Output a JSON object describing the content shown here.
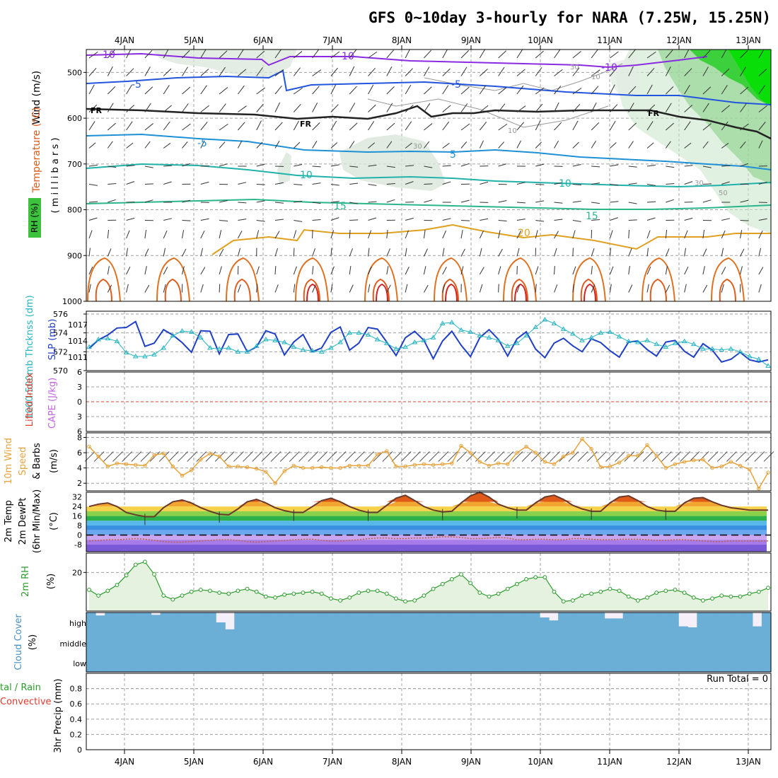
{
  "title": "GFS 0~10day 3-hourly for NARA (7.25W, 15.25N)",
  "x_labels": [
    "4JAN",
    "5JAN",
    "6JAN",
    "7JAN",
    "8JAN",
    "9JAN",
    "10JAN",
    "11JAN",
    "12JAN",
    "13JAN"
  ],
  "run_total": "Run Total = 0",
  "panel_labels": {
    "upper_wind": "Wind (m/s)",
    "upper_temp": "Temperature (°C)",
    "upper_rh": "RH (%)",
    "upper_units": "( m i l l i b a r s )",
    "thickness": "1000-500mb Thcknss (dm)",
    "slp": "SLP (mb)",
    "lifted": "Lifted Index",
    "cape": "CAPE (J/kg)",
    "wind10_a": "10m Wind",
    "wind10_b": "Speed",
    "wind10_c": "& Barbs",
    "wind10_units": "(m/s)",
    "temp_a": "2m Temp",
    "temp_b": "2m DewPt",
    "temp_c": "(6hr Min/Max)",
    "temp_units": "(°C)",
    "rh_a": "2m RH",
    "rh_units": "(%)",
    "cloud_a": "Cloud Cover",
    "cloud_units": "(%)",
    "cloud_levels": [
      "high",
      "middle",
      "low"
    ],
    "precip_a": "tal / Rain",
    "precip_b": "Convective",
    "precip_c": "3hr Precip (mm)"
  },
  "colors": {
    "frame": "#000000",
    "grid": "#a0a0a0",
    "cloud": "#6baed6",
    "slp": "#1f3fc8",
    "thickness": "#27b5c2",
    "wind10": "#e8a33d",
    "rh2m": "#2a9d2a"
  },
  "chart_data": [
    {
      "type": "contour",
      "panel": "upper-air",
      "yaxis": "pressure (mb)",
      "ylim": [
        1000,
        450
      ],
      "yticks": [
        500,
        600,
        700,
        800,
        900,
        1000
      ],
      "temperature_labels": [
        "-10",
        "-10",
        "-10",
        "-5",
        "-5",
        "FR",
        "FR",
        "FR",
        "-5",
        "5",
        "-5",
        "10",
        "10",
        "15",
        "15",
        "20"
      ],
      "rh_labels": [
        "30",
        "10",
        "10",
        "30",
        "30",
        "50"
      ]
    },
    {
      "type": "line",
      "panel": "thickness-slp",
      "ylim_thickness": [
        570,
        576
      ],
      "yticks_thickness": [
        570,
        572,
        574,
        576
      ],
      "yticks_slp": [
        1011,
        1014,
        1017
      ],
      "series": [
        {
          "name": "SLP (mb)",
          "values": [
            1012.6,
            1014.2,
            1015.1,
            1016.4,
            1016.5,
            1017.6,
            1013.0,
            1013.6,
            1016.1,
            1015.1,
            1013.7,
            1011.9,
            1015.9,
            1015.8,
            1011.6,
            1015.2,
            1015.3,
            1012.0,
            1012.9,
            1015.9,
            1015.3,
            1011.4,
            1013.8,
            1015.2,
            1012.0,
            1012.7,
            1015.6,
            1016.6,
            1012.3,
            1013.6,
            1016.5,
            1016.2,
            1013.8,
            1011.3,
            1014.6,
            1015.8,
            1014.1,
            1010.7,
            1014.0,
            1015.8,
            1013.2,
            1011.1,
            1014.6,
            1016.1,
            1014.3,
            1011.2,
            1014.4,
            1015.7,
            1012.5,
            1010.9,
            1013.6,
            1014.5,
            1013.1,
            1012.0,
            1014.4,
            1013.7,
            1012.2,
            1011.0,
            1013.8,
            1014.0,
            1012.4,
            1011.2,
            1013.8,
            1014.1,
            1012.1,
            1011.0,
            1013.5,
            1012.3,
            1010.1,
            1010.6,
            1011.9,
            1010.5,
            1010.1,
            1010.5
          ]
        },
        {
          "name": "1000-500mb Thcknss (dm)",
          "values": [
            572.5,
            573.3,
            573.4,
            573.1,
            571.9,
            571.5,
            571.5,
            571.7,
            572.4,
            573.7,
            574.2,
            574.1,
            573.5,
            572.4,
            572.3,
            572.4,
            572.0,
            572.0,
            572.6,
            573.3,
            573.2,
            573.0,
            572.5,
            572.2,
            572.1,
            572.0,
            572.4,
            573.0,
            574.0,
            574.0,
            573.8,
            573.3,
            572.9,
            572.3,
            572.5,
            573.0,
            573.2,
            573.5,
            575.0,
            575.1,
            574.3,
            574.1,
            573.7,
            573.5,
            573.2,
            572.6,
            572.9,
            573.7,
            574.6,
            575.4,
            575.0,
            574.4,
            573.9,
            573.2,
            573.5,
            574.0,
            574.1,
            573.6,
            573.1,
            573.0,
            573.2,
            572.8,
            572.5,
            572.9,
            573.1,
            572.8,
            572.3,
            572.3,
            572.2,
            572.3,
            572.0,
            571.5,
            571.2,
            570.5
          ]
        }
      ]
    },
    {
      "type": "line",
      "panel": "lifted-cape",
      "ylim": [
        6,
        -6
      ],
      "yticks": [
        -6,
        -3,
        0,
        3,
        6
      ],
      "series": []
    },
    {
      "type": "line",
      "panel": "wind10m",
      "ylim": [
        1,
        8
      ],
      "yticks": [
        2,
        4,
        6,
        8
      ],
      "series": [
        {
          "name": "10m Wind Speed",
          "values": [
            6.8,
            5.5,
            4.2,
            4.6,
            4.5,
            4.4,
            4.3,
            5.7,
            5.9,
            4.2,
            3.0,
            3.7,
            5.1,
            5.9,
            5.5,
            4.2,
            4.2,
            4.1,
            3.9,
            3.5,
            2.0,
            3.6,
            4.3,
            4.0,
            4.0,
            4.1,
            4.0,
            4.0,
            4.3,
            4.3,
            4.3,
            5.8,
            6.2,
            4.2,
            4.2,
            4.4,
            4.5,
            4.4,
            4.5,
            4.6,
            6.9,
            6.0,
            4.8,
            4.3,
            4.6,
            4.5,
            6.0,
            6.8,
            6.0,
            4.8,
            4.5,
            5.5,
            6.0,
            7.8,
            6.5,
            4.1,
            4.2,
            4.7,
            5.6,
            5.6,
            7.0,
            5.6,
            4.0,
            4.5,
            4.8,
            5.0,
            5.1,
            4.0,
            4.2,
            4.8,
            4.3,
            3.8,
            1.3,
            3.4
          ]
        }
      ]
    },
    {
      "type": "line",
      "panel": "temp-dewpt",
      "ylim": [
        -14,
        36
      ],
      "yticks": [
        -8,
        0,
        8,
        16,
        24,
        32
      ],
      "series": [
        {
          "name": "2m Temp",
          "values": [
            24.0,
            26.0,
            27.0,
            24.0,
            19.0,
            17.0,
            15.5,
            15.5,
            23.0,
            28.0,
            29.5,
            27.0,
            23.0,
            20.0,
            17.5,
            17.0,
            22.0,
            28.0,
            30.0,
            27.0,
            23.0,
            20.5,
            19.0,
            19.0,
            24.0,
            29.0,
            31.0,
            28.0,
            24.0,
            21.0,
            19.0,
            19.0,
            25.0,
            31.0,
            33.5,
            29.0,
            24.0,
            21.0,
            19.5,
            20.0,
            27.0,
            33.0,
            36.0,
            32.0,
            26.0,
            23.0,
            21.0,
            21.0,
            27.0,
            32.0,
            33.5,
            30.0,
            25.0,
            22.0,
            20.0,
            20.0,
            27.0,
            32.0,
            33.0,
            29.0,
            24.0,
            21.0,
            20.0,
            20.0,
            27.0,
            31.0,
            31.5,
            28.0,
            25.0,
            23.0,
            22.0,
            21.0,
            21.0,
            21.0
          ]
        },
        {
          "name": "2m DewPt",
          "values": [
            -5.0,
            -4.5,
            -4.0,
            -4.0,
            -3.5,
            -3.0,
            -3.5,
            -4.5,
            -5.5,
            -6.0,
            -6.0,
            -5.5,
            -5.0,
            -4.5,
            -4.0,
            -4.0,
            -4.5,
            -5.5,
            -6.0,
            -5.5,
            -5.0,
            -4.5,
            -4.0,
            -3.5,
            -3.5,
            -4.5,
            -5.0,
            -5.0,
            -4.5,
            -4.0,
            -3.0,
            -2.5,
            -2.5,
            -3.0,
            -3.0,
            -2.5,
            -2.5,
            -2.0,
            -1.5,
            -1.5,
            -2.0,
            -3.0,
            -3.0,
            -2.5,
            -2.0,
            -2.5,
            -4.0,
            -4.0,
            -3.5,
            -3.5,
            -4.0,
            -4.0,
            -3.0,
            -3.0,
            -3.5,
            -4.0,
            -4.0,
            -3.5,
            -3.5,
            -3.5,
            -4.0,
            -4.5,
            -4.5,
            -4.0,
            -4.0,
            -4.5,
            -5.0,
            -5.5,
            -5.5,
            -5.0,
            -5.0,
            -5.0,
            -5.0,
            -5.0
          ]
        }
      ]
    },
    {
      "type": "area",
      "panel": "rh2m",
      "ylim": [
        0,
        30
      ],
      "yticks": [
        20
      ],
      "series": [
        {
          "name": "2m RH",
          "values": [
            11.0,
            8.0,
            10.5,
            13.5,
            18.5,
            24.0,
            25.5,
            19.0,
            8.0,
            6.0,
            8.0,
            10.0,
            11.0,
            10.5,
            9.5,
            9.0,
            10.5,
            11.5,
            10.0,
            7.5,
            7.0,
            8.5,
            9.0,
            9.5,
            10.0,
            9.0,
            6.5,
            5.5,
            7.0,
            9.5,
            10.5,
            10.5,
            9.0,
            6.5,
            5.0,
            5.5,
            8.0,
            11.5,
            14.0,
            16.5,
            19.0,
            14.5,
            9.5,
            7.5,
            9.0,
            11.5,
            14.0,
            16.5,
            17.5,
            17.5,
            10.0,
            5.0,
            5.5,
            8.0,
            9.0,
            10.0,
            11.5,
            10.5,
            7.5,
            5.5,
            7.0,
            9.5,
            10.5,
            11.0,
            9.5,
            7.0,
            5.5,
            6.5,
            8.0,
            7.5,
            7.5,
            9.0,
            10.0,
            12.0
          ]
        }
      ]
    },
    {
      "type": "area",
      "panel": "cloud-cover",
      "ylim": [
        0,
        300
      ],
      "series": [
        {
          "name": "high",
          "values": [
            100,
            85,
            100,
            100,
            100,
            100,
            100,
            88,
            100,
            100,
            100,
            100,
            100,
            100,
            50,
            15,
            100,
            100,
            100,
            100,
            100,
            100,
            100,
            100,
            100,
            100,
            100,
            100,
            100,
            100,
            100,
            100,
            100,
            100,
            100,
            100,
            100,
            100,
            100,
            100,
            100,
            100,
            100,
            100,
            100,
            100,
            100,
            100,
            100,
            75,
            60,
            100,
            100,
            100,
            100,
            100,
            70,
            70,
            100,
            100,
            100,
            100,
            100,
            100,
            30,
            25,
            100,
            100,
            100,
            100,
            100,
            100,
            30,
            100
          ]
        },
        {
          "name": "middle",
          "values": [
            100,
            100,
            100,
            100,
            100,
            100,
            100,
            100,
            100,
            100,
            100,
            100,
            100,
            100,
            100,
            100,
            100,
            100,
            100,
            100,
            100,
            100,
            100,
            100,
            100,
            100,
            100,
            100,
            100,
            100,
            100,
            100,
            100,
            100,
            100,
            100,
            100,
            100,
            100,
            100,
            100,
            100,
            100,
            100,
            100,
            100,
            100,
            100,
            100,
            100,
            100,
            100,
            100,
            100,
            100,
            100,
            100,
            100,
            100,
            100,
            100,
            100,
            100,
            100,
            100,
            100,
            100,
            100,
            100,
            100,
            100,
            100,
            100,
            100
          ]
        },
        {
          "name": "low",
          "values": [
            100,
            100,
            100,
            100,
            100,
            100,
            100,
            100,
            100,
            100,
            100,
            100,
            100,
            100,
            100,
            100,
            100,
            100,
            100,
            100,
            100,
            100,
            100,
            100,
            100,
            100,
            100,
            100,
            100,
            100,
            100,
            100,
            100,
            100,
            100,
            100,
            100,
            100,
            100,
            100,
            100,
            100,
            100,
            100,
            100,
            100,
            100,
            100,
            100,
            100,
            100,
            100,
            100,
            100,
            100,
            100,
            100,
            100,
            100,
            100,
            100,
            100,
            100,
            100,
            100,
            100,
            100,
            100,
            100,
            100,
            100,
            100,
            100,
            100
          ]
        }
      ]
    },
    {
      "type": "bar",
      "panel": "precip",
      "ylim": [
        0,
        1
      ],
      "yticks": [
        0,
        0.2,
        0.4,
        0.6,
        0.8
      ],
      "series": []
    }
  ]
}
